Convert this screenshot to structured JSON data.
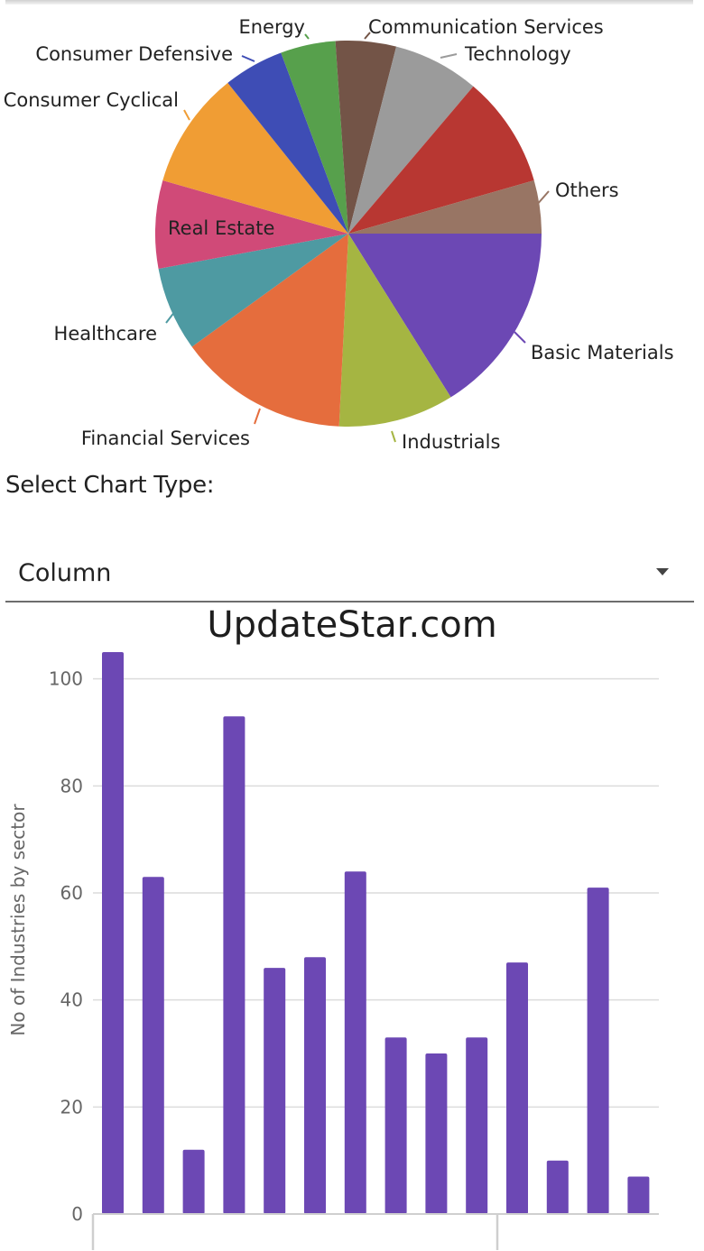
{
  "chart_data": [
    {
      "type": "pie",
      "title": "",
      "slices": [
        {
          "label": "Basic Materials",
          "value": 105,
          "color": "#6c48b4"
        },
        {
          "label": "Industrials",
          "value": 63,
          "color": "#a5b542"
        },
        {
          "label": "Financial Services",
          "value": 93,
          "color": "#e56d3d"
        },
        {
          "label": "Healthcare",
          "value": 46,
          "color": "#4e9aa2"
        },
        {
          "label": "Real Estate",
          "value": 48,
          "color": "#d04a78"
        },
        {
          "label": "Consumer Cyclical",
          "value": 64,
          "color": "#f09d34"
        },
        {
          "label": "Consumer Defensive",
          "value": 33,
          "color": "#3e4db5"
        },
        {
          "label": "Energy",
          "value": 30,
          "color": "#57a04c"
        },
        {
          "label": "Communication Services",
          "value": 33,
          "color": "#735447"
        },
        {
          "label": "Technology",
          "value": 47,
          "color": "#9b9b9b"
        },
        {
          "label": "",
          "value": 61,
          "color": "#b83732"
        },
        {
          "label": "Others",
          "value": 29,
          "color": "#987564"
        }
      ]
    },
    {
      "type": "bar",
      "title": "UpdateStar.com",
      "ylabel": "No of Industries by sector",
      "xlabel": "",
      "ylim": [
        0,
        105
      ],
      "yticks": [
        0,
        20,
        40,
        60,
        80,
        100
      ],
      "grid": true,
      "color": "#6c48b4",
      "values": [
        105,
        63,
        12,
        93,
        46,
        48,
        64,
        33,
        30,
        33,
        47,
        10,
        61,
        7
      ]
    }
  ],
  "controls": {
    "select_label": "Select Chart Type:",
    "select_value": "Column"
  }
}
